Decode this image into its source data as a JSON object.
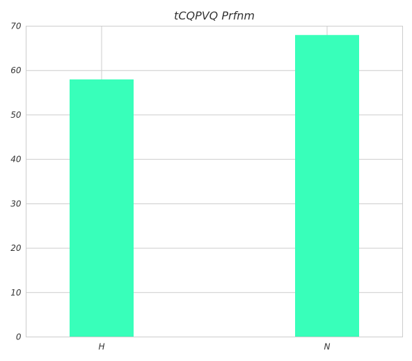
{
  "chart_data": {
    "type": "bar",
    "title": "tCQPVQ Prfnm",
    "categories": [
      "H",
      "N"
    ],
    "values": [
      58,
      68
    ],
    "ylim": [
      0,
      70
    ],
    "yticks": [
      0,
      10,
      20,
      30,
      40,
      50,
      60,
      70
    ],
    "xlabel": "",
    "ylabel": "",
    "grid": true,
    "bar_color": "#38ffba",
    "grid_color": "#cccccc",
    "text_color": "#333333"
  }
}
